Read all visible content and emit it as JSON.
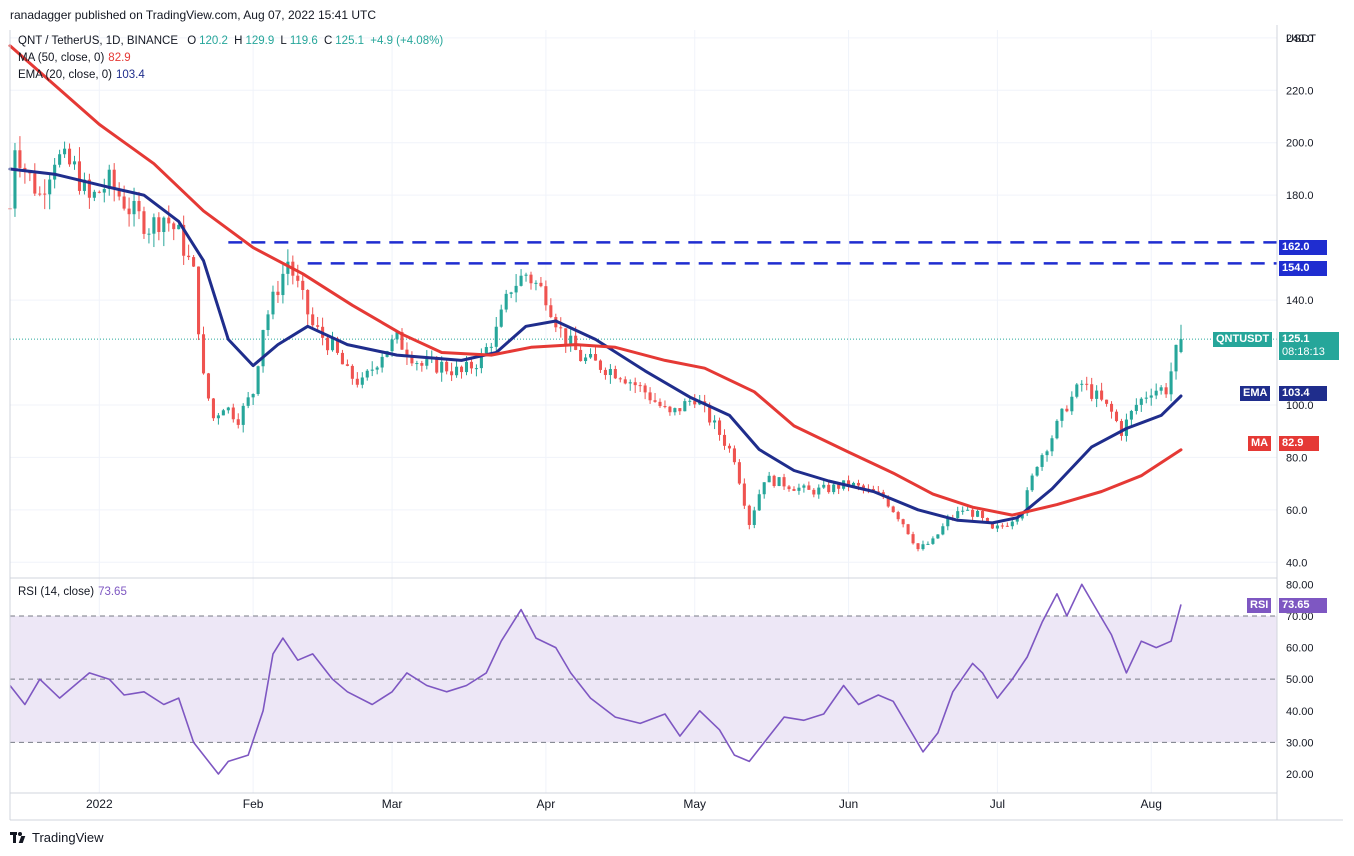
{
  "header": {
    "publisher": "ranadagger published on TradingView.com, Aug 07, 2022 15:41 UTC"
  },
  "legend": {
    "symbol": "QNT / TetherUS, 1D, BINANCE",
    "o_label": "O",
    "o": "120.2",
    "h_label": "H",
    "h": "129.9",
    "l_label": "L",
    "l": "119.6",
    "c_label": "C",
    "c": "125.1",
    "change": "+4.9 (+4.08%)",
    "ma_label": "MA (50, close, 0)",
    "ma_value": "82.9",
    "ema_label": "EMA (20, close, 0)",
    "ema_value": "103.4",
    "rsi_label": "RSI (14, close)",
    "rsi_value": "73.65"
  },
  "price_scale": {
    "currency": "USDT"
  },
  "tags": {
    "symbol": "QNTUSDT",
    "price": "125.1",
    "countdown": "08:18:13",
    "ema": "EMA",
    "ema_value": "103.4",
    "ma": "MA",
    "ma_value": "82.9",
    "rsi": "RSI",
    "rsi_value": "73.65",
    "level_162": "162.0",
    "level_154": "154.0"
  },
  "footer": {
    "brand": "TradingView"
  },
  "colors": {
    "up": "#26a69a",
    "down": "#ef5350",
    "ema": "#1f2d8c",
    "ma": "#e53935",
    "rsi": "#7e57c2",
    "rsi_band": "#ede7f6",
    "levels": "#1f2dd0"
  },
  "chart_data": [
    {
      "type": "candlestick",
      "title": "QNT / TetherUS, 1D, BINANCE",
      "x_tick_labels": [
        "2022",
        "Feb",
        "Mar",
        "Apr",
        "May",
        "Jun",
        "Jul",
        "Aug"
      ],
      "x_range": [
        "2021-12-14",
        "2022-08-07"
      ],
      "y_ticks": [
        40.0,
        60.0,
        80.0,
        100.0,
        140.0,
        180.0,
        200.0,
        220.0,
        240.0
      ],
      "ylim": [
        34,
        243
      ],
      "horizontal_levels": [
        162.0,
        154.0
      ],
      "last_close": 125.1,
      "price_path": [
        [
          "2021-12-14",
          175
        ],
        [
          "2021-12-15",
          200
        ],
        [
          "2021-12-17",
          190
        ],
        [
          "2021-12-20",
          180
        ],
        [
          "2021-12-23",
          195
        ],
        [
          "2021-12-27",
          190
        ],
        [
          "2021-12-30",
          178
        ],
        [
          "2022-01-03",
          185
        ],
        [
          "2022-01-07",
          175
        ],
        [
          "2022-01-11",
          168
        ],
        [
          "2022-01-14",
          172
        ],
        [
          "2022-01-17",
          165
        ],
        [
          "2022-01-20",
          150
        ],
        [
          "2022-01-22",
          110
        ],
        [
          "2022-01-24",
          95
        ],
        [
          "2022-01-26",
          100
        ],
        [
          "2022-01-29",
          95
        ],
        [
          "2022-02-01",
          105
        ],
        [
          "2022-02-03",
          130
        ],
        [
          "2022-02-06",
          145
        ],
        [
          "2022-02-08",
          155
        ],
        [
          "2022-02-10",
          145
        ],
        [
          "2022-02-13",
          130
        ],
        [
          "2022-02-17",
          122
        ],
        [
          "2022-02-20",
          112
        ],
        [
          "2022-02-23",
          108
        ],
        [
          "2022-02-27",
          120
        ],
        [
          "2022-03-02",
          125
        ],
        [
          "2022-03-07",
          115
        ],
        [
          "2022-03-11",
          115
        ],
        [
          "2022-03-15",
          112
        ],
        [
          "2022-03-19",
          118
        ],
        [
          "2022-03-22",
          128
        ],
        [
          "2022-03-25",
          145
        ],
        [
          "2022-03-28",
          150
        ],
        [
          "2022-04-01",
          142
        ],
        [
          "2022-04-04",
          128
        ],
        [
          "2022-04-08",
          118
        ],
        [
          "2022-04-12",
          115
        ],
        [
          "2022-04-16",
          112
        ],
        [
          "2022-04-21",
          105
        ],
        [
          "2022-04-26",
          96
        ],
        [
          "2022-05-01",
          103
        ],
        [
          "2022-05-05",
          92
        ],
        [
          "2022-05-09",
          80
        ],
        [
          "2022-05-12",
          55
        ],
        [
          "2022-05-15",
          72
        ],
        [
          "2022-05-19",
          70
        ],
        [
          "2022-05-24",
          67
        ],
        [
          "2022-05-28",
          68
        ],
        [
          "2022-06-01",
          70
        ],
        [
          "2022-06-05",
          67
        ],
        [
          "2022-06-08",
          65
        ],
        [
          "2022-06-12",
          55
        ],
        [
          "2022-06-15",
          45
        ],
        [
          "2022-06-18",
          48
        ],
        [
          "2022-06-21",
          56
        ],
        [
          "2022-06-24",
          60
        ],
        [
          "2022-06-27",
          58
        ],
        [
          "2022-06-30",
          52
        ],
        [
          "2022-07-03",
          55
        ],
        [
          "2022-07-06",
          60
        ],
        [
          "2022-07-09",
          78
        ],
        [
          "2022-07-12",
          88
        ],
        [
          "2022-07-15",
          100
        ],
        [
          "2022-07-18",
          108
        ],
        [
          "2022-07-21",
          103
        ],
        [
          "2022-07-24",
          97
        ],
        [
          "2022-07-26",
          90
        ],
        [
          "2022-07-29",
          100
        ],
        [
          "2022-08-01",
          106
        ],
        [
          "2022-08-04",
          106
        ],
        [
          "2022-08-06",
          120
        ],
        [
          "2022-08-07",
          125.1
        ]
      ],
      "series": [
        {
          "name": "EMA (20, close, 0)",
          "last": 103.4,
          "values": [
            [
              "2021-12-14",
              190
            ],
            [
              "2021-12-23",
              188
            ],
            [
              "2022-01-03",
              183
            ],
            [
              "2022-01-10",
              180
            ],
            [
              "2022-01-17",
              170
            ],
            [
              "2022-01-22",
              155
            ],
            [
              "2022-01-27",
              125
            ],
            [
              "2022-02-01",
              115
            ],
            [
              "2022-02-06",
              123
            ],
            [
              "2022-02-12",
              130
            ],
            [
              "2022-02-20",
              123
            ],
            [
              "2022-03-02",
              119
            ],
            [
              "2022-03-15",
              117
            ],
            [
              "2022-03-22",
              120
            ],
            [
              "2022-03-28",
              130
            ],
            [
              "2022-04-03",
              132
            ],
            [
              "2022-04-11",
              125
            ],
            [
              "2022-04-21",
              113
            ],
            [
              "2022-04-30",
              103
            ],
            [
              "2022-05-08",
              96
            ],
            [
              "2022-05-14",
              83
            ],
            [
              "2022-05-21",
              75
            ],
            [
              "2022-05-28",
              71
            ],
            [
              "2022-06-06",
              67
            ],
            [
              "2022-06-15",
              60
            ],
            [
              "2022-06-23",
              56
            ],
            [
              "2022-06-30",
              55
            ],
            [
              "2022-07-05",
              57
            ],
            [
              "2022-07-12",
              68
            ],
            [
              "2022-07-20",
              84
            ],
            [
              "2022-07-27",
              91
            ],
            [
              "2022-08-03",
              96
            ],
            [
              "2022-08-07",
              103.4
            ]
          ]
        },
        {
          "name": "MA (50, close, 0)",
          "last": 82.9,
          "values": [
            [
              "2021-12-14",
              237
            ],
            [
              "2021-12-23",
              222
            ],
            [
              "2022-01-01",
              207
            ],
            [
              "2022-01-12",
              192
            ],
            [
              "2022-01-22",
              174
            ],
            [
              "2022-02-01",
              160
            ],
            [
              "2022-02-11",
              150
            ],
            [
              "2022-02-21",
              138
            ],
            [
              "2022-03-03",
              127
            ],
            [
              "2022-03-11",
              120
            ],
            [
              "2022-03-21",
              119
            ],
            [
              "2022-03-29",
              122
            ],
            [
              "2022-04-07",
              123
            ],
            [
              "2022-04-15",
              122
            ],
            [
              "2022-04-25",
              117
            ],
            [
              "2022-05-03",
              114
            ],
            [
              "2022-05-13",
              105
            ],
            [
              "2022-05-21",
              92
            ],
            [
              "2022-06-01",
              82
            ],
            [
              "2022-06-10",
              74
            ],
            [
              "2022-06-18",
              66
            ],
            [
              "2022-06-26",
              61
            ],
            [
              "2022-07-04",
              58
            ],
            [
              "2022-07-13",
              62
            ],
            [
              "2022-07-22",
              67
            ],
            [
              "2022-07-30",
              73
            ],
            [
              "2022-08-07",
              82.9
            ]
          ]
        }
      ]
    },
    {
      "type": "line",
      "title": "RSI (14, close)",
      "y_ticks": [
        20.0,
        30.0,
        40.0,
        50.0,
        60.0,
        70.0,
        80.0
      ],
      "ylim": [
        14,
        82
      ],
      "band": [
        30,
        70
      ],
      "midline": 50,
      "series": [
        {
          "name": "RSI (14, close)",
          "last": 73.65,
          "values": [
            [
              "2021-12-14",
              48
            ],
            [
              "2021-12-17",
              42
            ],
            [
              "2021-12-20",
              50
            ],
            [
              "2021-12-24",
              44
            ],
            [
              "2021-12-27",
              48
            ],
            [
              "2021-12-30",
              52
            ],
            [
              "2022-01-03",
              50
            ],
            [
              "2022-01-06",
              45
            ],
            [
              "2022-01-10",
              46
            ],
            [
              "2022-01-14",
              42
            ],
            [
              "2022-01-17",
              44
            ],
            [
              "2022-01-20",
              30
            ],
            [
              "2022-01-23",
              24
            ],
            [
              "2022-01-25",
              20
            ],
            [
              "2022-01-27",
              24
            ],
            [
              "2022-01-31",
              26
            ],
            [
              "2022-02-03",
              40
            ],
            [
              "2022-02-05",
              58
            ],
            [
              "2022-02-07",
              63
            ],
            [
              "2022-02-10",
              56
            ],
            [
              "2022-02-13",
              58
            ],
            [
              "2022-02-17",
              50
            ],
            [
              "2022-02-20",
              46
            ],
            [
              "2022-02-25",
              42
            ],
            [
              "2022-03-01",
              46
            ],
            [
              "2022-03-04",
              52
            ],
            [
              "2022-03-08",
              48
            ],
            [
              "2022-03-12",
              46
            ],
            [
              "2022-03-16",
              48
            ],
            [
              "2022-03-20",
              52
            ],
            [
              "2022-03-23",
              62
            ],
            [
              "2022-03-27",
              72
            ],
            [
              "2022-03-30",
              63
            ],
            [
              "2022-04-03",
              60
            ],
            [
              "2022-04-06",
              52
            ],
            [
              "2022-04-10",
              44
            ],
            [
              "2022-04-15",
              38
            ],
            [
              "2022-04-20",
              36
            ],
            [
              "2022-04-25",
              39
            ],
            [
              "2022-04-28",
              32
            ],
            [
              "2022-05-02",
              40
            ],
            [
              "2022-05-06",
              34
            ],
            [
              "2022-05-09",
              26
            ],
            [
              "2022-05-12",
              24
            ],
            [
              "2022-05-15",
              30
            ],
            [
              "2022-05-19",
              38
            ],
            [
              "2022-05-23",
              37
            ],
            [
              "2022-05-27",
              39
            ],
            [
              "2022-05-31",
              48
            ],
            [
              "2022-06-03",
              42
            ],
            [
              "2022-06-07",
              45
            ],
            [
              "2022-06-10",
              43
            ],
            [
              "2022-06-13",
              35
            ],
            [
              "2022-06-16",
              27
            ],
            [
              "2022-06-19",
              33
            ],
            [
              "2022-06-22",
              46
            ],
            [
              "2022-06-26",
              55
            ],
            [
              "2022-06-28",
              52
            ],
            [
              "2022-07-01",
              44
            ],
            [
              "2022-07-04",
              50
            ],
            [
              "2022-07-07",
              57
            ],
            [
              "2022-07-10",
              68
            ],
            [
              "2022-07-13",
              77
            ],
            [
              "2022-07-15",
              70
            ],
            [
              "2022-07-18",
              80
            ],
            [
              "2022-07-21",
              72
            ],
            [
              "2022-07-24",
              64
            ],
            [
              "2022-07-27",
              52
            ],
            [
              "2022-07-30",
              62
            ],
            [
              "2022-08-02",
              60
            ],
            [
              "2022-08-05",
              62
            ],
            [
              "2022-08-07",
              73.65
            ]
          ]
        }
      ]
    }
  ]
}
